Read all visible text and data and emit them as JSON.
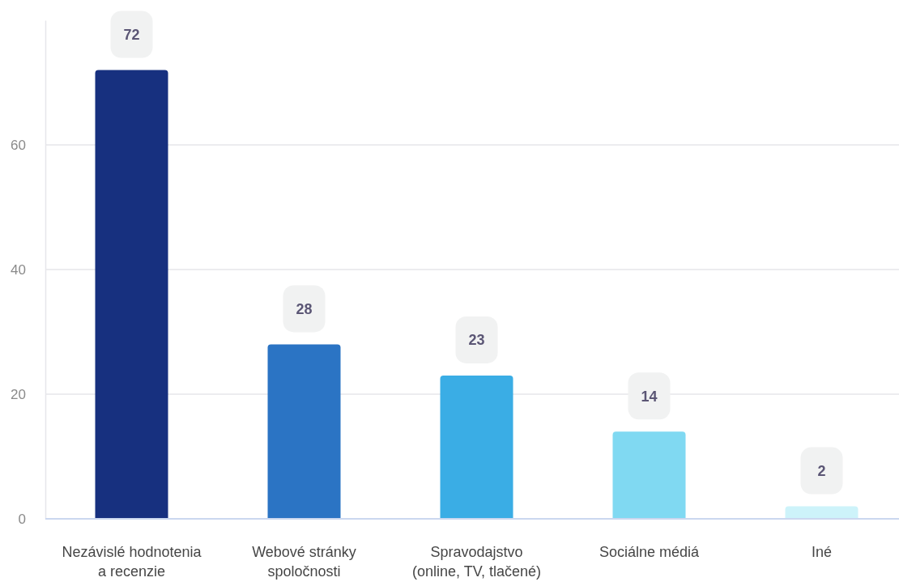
{
  "chart_data": {
    "type": "bar",
    "categories": [
      "Nezávislé hodnotenia a recenzie",
      "Webové stránky spoločnosti",
      "Spravodajstvo (online, TV, tlačené)",
      "Sociálne médiá",
      "Iné"
    ],
    "values": [
      72,
      28,
      23,
      14,
      2
    ],
    "colors": [
      "#17307f",
      "#2b74c4",
      "#3aade5",
      "#80d9f2",
      "#cdf3fa"
    ],
    "ylim": [
      0,
      80
    ],
    "yticks": [
      0,
      20,
      40,
      60
    ],
    "grid": "y",
    "data_labels": true
  }
}
